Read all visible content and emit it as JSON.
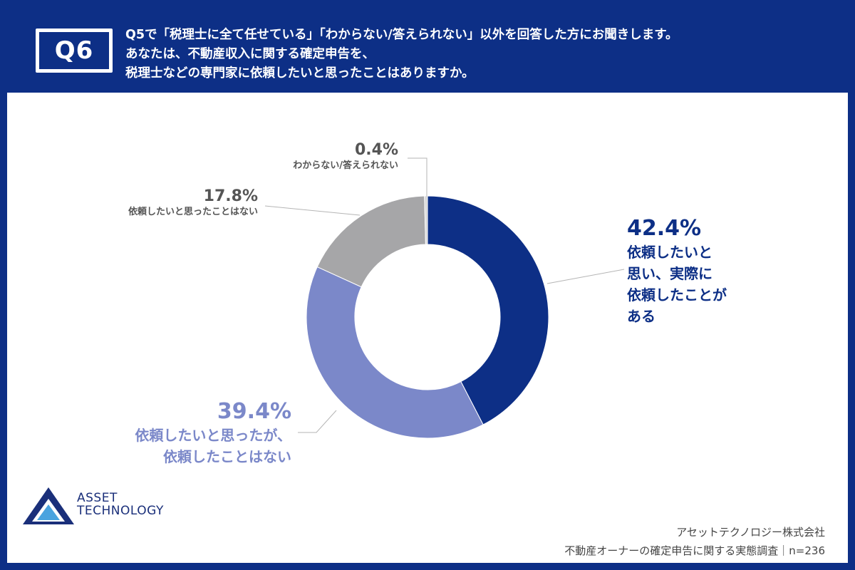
{
  "header": {
    "badge": "Q6",
    "question_lines": [
      "Q5で「税理士に全て任せている」「わからない/答えられない」以外を回答した方にお聞きします。",
      "あなたは、不動産収入に関する確定申告を、",
      "税理士などの専門家に依頼したいと思ったことはありますか。"
    ]
  },
  "chart_data": {
    "type": "pie",
    "donut": true,
    "slices": [
      {
        "label_lines": [
          "依頼したいと",
          "思い、実際に",
          "依頼したことが",
          "ある"
        ],
        "pct_label": "42.4%",
        "value": 42.4,
        "color": "#0d2f86"
      },
      {
        "label_lines": [
          "依頼したいと思ったが、",
          "依頼したことはない"
        ],
        "pct_label": "39.4%",
        "value": 39.4,
        "color": "#7b88c9"
      },
      {
        "label_lines": [
          "依頼したいと思ったことはない"
        ],
        "pct_label": "17.8%",
        "value": 17.8,
        "color": "#a6a6a8"
      },
      {
        "label_lines": [
          "わからない/答えられない"
        ],
        "pct_label": "0.4%",
        "value": 0.4,
        "color": "#d8d8d8"
      }
    ]
  },
  "logo": {
    "line1": "ASSET",
    "line2": "TECHNOLOGY"
  },
  "footer": {
    "company": "アセットテクノロジー株式会社",
    "survey": "不動産オーナーの確定申告に関する実態調査｜n=236"
  },
  "colors": {
    "brand": "#0d2f86",
    "accent": "#7b88c9",
    "gray": "#a6a6a8"
  }
}
